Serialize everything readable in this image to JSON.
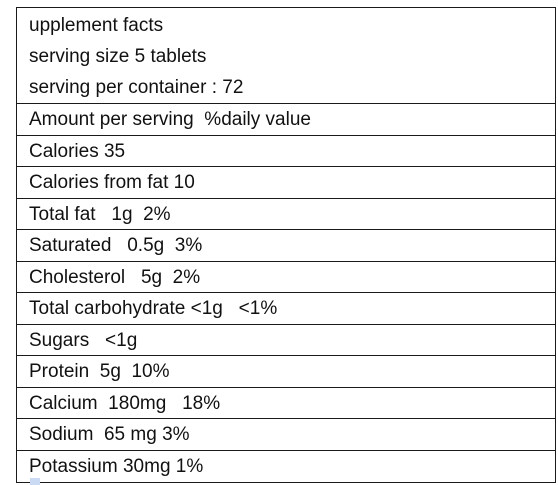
{
  "header": {
    "title": "upplement facts",
    "serving_size": "serving size 5 tablets",
    "servings_per_container": "serving per container : 72"
  },
  "rows": [
    "Amount per serving  %daily value",
    "Calories 35",
    "Calories from fat 10",
    "Total fat   1g  2%",
    "Saturated   0.5g  3%",
    "Cholesterol   5g  2%",
    "Total carbohydrate <1g   <1%",
    "Sugars   <1g",
    "Protein  5g  10%",
    "Calcium  180mg   18%",
    "Sodium  65 mg 3%",
    "Potassium 30mg 1%"
  ]
}
